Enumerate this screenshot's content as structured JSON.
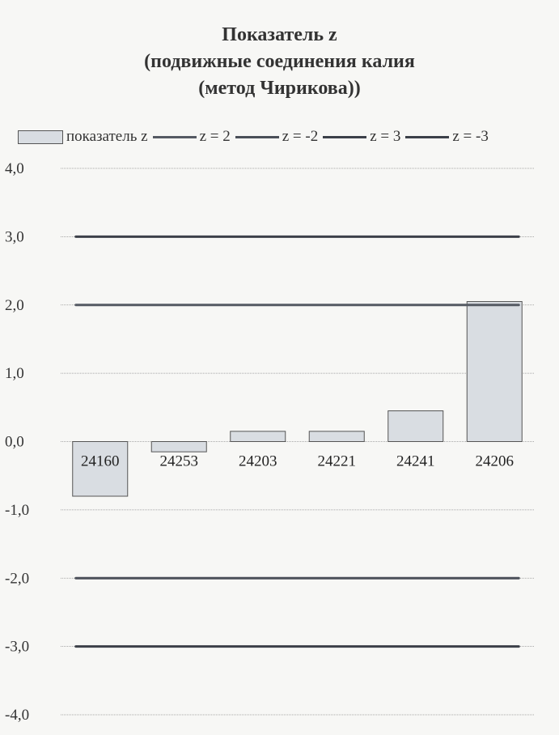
{
  "chart_data": {
    "type": "bar",
    "title_lines": [
      "Показатель z",
      "(подвижные соединения калия",
      "(метод Чирикова))"
    ],
    "categories": [
      "24160",
      "24253",
      "24203",
      "24221",
      "24241",
      "24206"
    ],
    "series": [
      {
        "name": "показатель z",
        "type": "bar",
        "values": [
          -0.8,
          -0.15,
          0.15,
          0.15,
          0.45,
          2.05
        ]
      }
    ],
    "reference_lines": [
      {
        "name": "z = 2",
        "value": 2,
        "color": "#555a63"
      },
      {
        "name": "z = -2",
        "value": -2,
        "color": "#4a4f58"
      },
      {
        "name": "z = 3",
        "value": 3,
        "color": "#3c4049"
      },
      {
        "name": "z = -3",
        "value": -3,
        "color": "#3c4049"
      }
    ],
    "yticks": [
      "4,0",
      "3,0",
      "2,0",
      "1,0",
      "0,0",
      "-1,0",
      "-2,0",
      "-3,0",
      "-4,0"
    ],
    "ylim": [
      -4,
      4
    ],
    "grid": true,
    "legend_position": "top",
    "bar_color": "#d9dde2",
    "bar_border_color": "#555555"
  }
}
